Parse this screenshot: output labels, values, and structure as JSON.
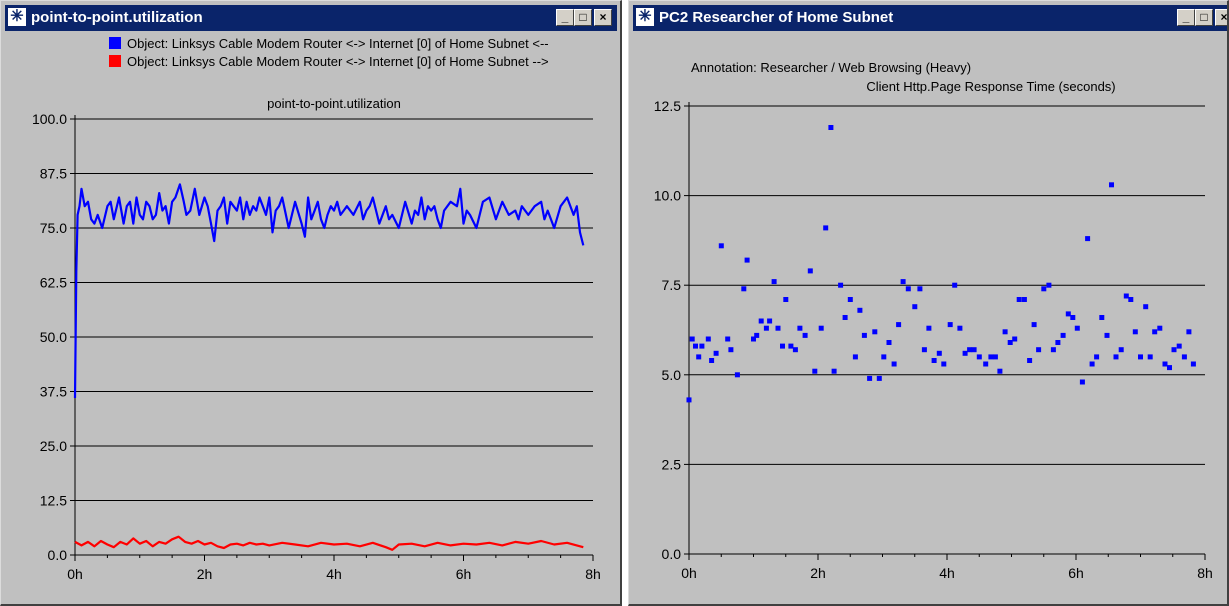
{
  "windows": {
    "left": {
      "title": "point-to-point.utilization",
      "controls": {
        "minimize_icon": "minimize-icon",
        "maximize_icon": "maximize-icon",
        "close_icon": "close-icon"
      }
    },
    "right": {
      "title": "PC2 Researcher of Home Subnet",
      "controls": {
        "minimize_icon": "minimize-icon",
        "maximize_icon": "maximize-icon",
        "close_icon": "close-icon"
      }
    }
  },
  "chart_data": [
    {
      "type": "line",
      "legend": [
        {
          "label": "Object: Linksys Cable Modem Router <-> Internet [0] of Home Subnet <--",
          "color": "#0000ff"
        },
        {
          "label": "Object: Linksys Cable Modem Router <-> Internet [0] of Home Subnet -->",
          "color": "#ff0000"
        }
      ],
      "title": "point-to-point.utilization",
      "xlabel": "",
      "ylabel": "",
      "ylim": [
        0,
        100
      ],
      "xlim": [
        0,
        8
      ],
      "yticks": [
        "0.0",
        "12.5",
        "25.0",
        "37.5",
        "50.0",
        "62.5",
        "75.0",
        "87.5",
        "100.0"
      ],
      "xticks": [
        "0h",
        "2h",
        "4h",
        "6h",
        "8h"
      ],
      "grid": true,
      "series": [
        {
          "name": "Object: Linksys Cable Modem Router <-> Internet [0] of Home Subnet <--",
          "color": "#0000ff",
          "x": [
            0,
            0.02,
            0.04,
            0.07,
            0.1,
            0.15,
            0.2,
            0.25,
            0.3,
            0.35,
            0.42,
            0.5,
            0.55,
            0.6,
            0.68,
            0.75,
            0.8,
            0.85,
            0.9,
            0.95,
            1.0,
            1.05,
            1.1,
            1.15,
            1.2,
            1.25,
            1.3,
            1.35,
            1.4,
            1.45,
            1.5,
            1.55,
            1.62,
            1.68,
            1.72,
            1.78,
            1.85,
            1.92,
            2.0,
            2.05,
            2.1,
            2.15,
            2.2,
            2.25,
            2.3,
            2.35,
            2.4,
            2.45,
            2.5,
            2.55,
            2.6,
            2.65,
            2.7,
            2.75,
            2.8,
            2.85,
            2.9,
            2.95,
            3.0,
            3.05,
            3.1,
            3.15,
            3.2,
            3.3,
            3.4,
            3.5,
            3.55,
            3.6,
            3.65,
            3.7,
            3.75,
            3.8,
            3.85,
            3.9,
            3.95,
            4.0,
            4.05,
            4.1,
            4.15,
            4.2,
            4.3,
            4.4,
            4.45,
            4.5,
            4.55,
            4.6,
            4.7,
            4.8,
            4.85,
            4.9,
            5.0,
            5.1,
            5.2,
            5.25,
            5.3,
            5.35,
            5.4,
            5.45,
            5.5,
            5.55,
            5.6,
            5.65,
            5.7,
            5.8,
            5.9,
            5.95,
            6.0,
            6.05,
            6.1,
            6.2,
            6.3,
            6.4,
            6.5,
            6.6,
            6.7,
            6.8,
            6.85,
            6.9,
            7.0,
            7.1,
            7.2,
            7.25,
            7.3,
            7.4,
            7.5,
            7.6,
            7.7,
            7.75,
            7.8,
            7.85
          ],
          "y": [
            36,
            65,
            78,
            80,
            84,
            80,
            81,
            77,
            76,
            78,
            75,
            80,
            81,
            77,
            82,
            76,
            80,
            81,
            76,
            82,
            78,
            77,
            81,
            80,
            77,
            78,
            83,
            79,
            80,
            76,
            81,
            82,
            85,
            81,
            78,
            79,
            84,
            78,
            82,
            80,
            76,
            72,
            79,
            80,
            82,
            76,
            81,
            80,
            79,
            82,
            77,
            81,
            78,
            80,
            79,
            82,
            80,
            78,
            82,
            74,
            79,
            80,
            82,
            75,
            81,
            76,
            73,
            82,
            77,
            79,
            81,
            77,
            75,
            78,
            80,
            79,
            81,
            78,
            79,
            80,
            78,
            81,
            77,
            79,
            80,
            82,
            76,
            80,
            77,
            78,
            75,
            81,
            76,
            79,
            78,
            82,
            77,
            80,
            79,
            80,
            77,
            75,
            79,
            81,
            80,
            84,
            76,
            79,
            78,
            75,
            81,
            82,
            77,
            81,
            78,
            79,
            77,
            80,
            78,
            80,
            81,
            77,
            79,
            75,
            80,
            82,
            78,
            80,
            74,
            71
          ],
          "y_note_unused": ""
        },
        {
          "name": "Object: Linksys Cable Modem Router <-> Internet [0] of Home Subnet -->",
          "color": "#ff0000",
          "x": [
            0,
            0.1,
            0.2,
            0.3,
            0.4,
            0.5,
            0.6,
            0.7,
            0.8,
            0.9,
            1.0,
            1.1,
            1.2,
            1.3,
            1.4,
            1.5,
            1.6,
            1.7,
            1.8,
            1.9,
            2.0,
            2.1,
            2.2,
            2.3,
            2.4,
            2.5,
            2.6,
            2.7,
            2.8,
            2.9,
            3.0,
            3.2,
            3.4,
            3.6,
            3.8,
            4.0,
            4.2,
            4.4,
            4.6,
            4.8,
            4.9,
            5.0,
            5.2,
            5.4,
            5.6,
            5.8,
            6.0,
            6.2,
            6.4,
            6.6,
            6.8,
            7.0,
            7.2,
            7.4,
            7.6,
            7.8,
            7.85
          ],
          "y": [
            3.0,
            2.2,
            3.0,
            2.0,
            3.2,
            2.4,
            1.8,
            3.0,
            2.4,
            3.8,
            2.6,
            3.2,
            2.0,
            3.0,
            2.6,
            3.6,
            4.2,
            3.0,
            2.6,
            3.2,
            2.4,
            2.8,
            2.0,
            1.6,
            2.4,
            2.6,
            2.2,
            2.8,
            2.4,
            2.6,
            2.2,
            2.8,
            2.4,
            2.0,
            2.8,
            2.4,
            2.6,
            2.0,
            2.8,
            1.8,
            1.2,
            2.4,
            2.6,
            2.0,
            2.8,
            2.2,
            2.6,
            2.4,
            2.8,
            2.2,
            3.0,
            2.6,
            3.2,
            2.4,
            2.8,
            2.0,
            1.8
          ]
        }
      ]
    },
    {
      "type": "scatter",
      "title": "Client Http.Page Response Time (seconds)",
      "annotation": "Annotation: Researcher / Web Browsing (Heavy)",
      "xlabel": "",
      "ylabel": "",
      "ylim": [
        0,
        12.5
      ],
      "xlim": [
        0,
        8
      ],
      "yticks": [
        "0.0",
        "2.5",
        "5.0",
        "7.5",
        "10.0",
        "12.5"
      ],
      "xticks": [
        "0h",
        "2h",
        "4h",
        "6h",
        "8h"
      ],
      "grid": true,
      "series": [
        {
          "color": "#0000ff",
          "x": [
            0.0,
            0.05,
            0.1,
            0.15,
            0.2,
            0.3,
            0.35,
            0.42,
            0.5,
            0.6,
            0.65,
            0.75,
            0.85,
            0.9,
            1.0,
            1.05,
            1.12,
            1.2,
            1.25,
            1.32,
            1.38,
            1.45,
            1.5,
            1.58,
            1.65,
            1.72,
            1.8,
            1.88,
            1.95,
            2.05,
            2.12,
            2.2,
            2.25,
            2.35,
            2.42,
            2.5,
            2.58,
            2.65,
            2.72,
            2.8,
            2.88,
            2.95,
            3.02,
            3.1,
            3.18,
            3.25,
            3.32,
            3.4,
            3.5,
            3.58,
            3.65,
            3.72,
            3.8,
            3.88,
            3.95,
            4.05,
            4.12,
            4.2,
            4.28,
            4.35,
            4.42,
            4.5,
            4.6,
            4.68,
            4.75,
            4.82,
            4.9,
            4.98,
            5.05,
            5.12,
            5.2,
            5.28,
            5.35,
            5.42,
            5.5,
            5.58,
            5.65,
            5.72,
            5.8,
            5.88,
            5.95,
            6.02,
            6.1,
            6.18,
            6.25,
            6.32,
            6.4,
            6.48,
            6.55,
            6.62,
            6.7,
            6.78,
            6.85,
            6.92,
            7.0,
            7.08,
            7.15,
            7.22,
            7.3,
            7.38,
            7.45,
            7.52,
            7.6,
            7.68,
            7.75,
            7.82
          ],
          "y": [
            4.3,
            6.0,
            5.8,
            5.5,
            5.8,
            6.0,
            5.4,
            5.6,
            8.6,
            6.0,
            5.7,
            5.0,
            7.4,
            8.2,
            6.0,
            6.1,
            6.5,
            6.3,
            6.5,
            7.6,
            6.3,
            5.8,
            7.1,
            5.8,
            5.7,
            6.3,
            6.1,
            7.9,
            5.1,
            6.3,
            9.1,
            11.9,
            5.1,
            7.5,
            6.6,
            7.1,
            5.5,
            6.8,
            6.1,
            4.9,
            6.2,
            4.9,
            5.5,
            5.9,
            5.3,
            6.4,
            7.6,
            7.4,
            6.9,
            7.4,
            5.7,
            6.3,
            5.4,
            5.6,
            5.3,
            6.4,
            7.5,
            6.3,
            5.6,
            5.7,
            5.7,
            5.5,
            5.3,
            5.5,
            5.5,
            5.1,
            6.2,
            5.9,
            6.0,
            7.1,
            7.1,
            5.4,
            6.4,
            5.7,
            7.4,
            7.5,
            5.7,
            5.9,
            6.1,
            6.7,
            6.6,
            6.3,
            4.8,
            8.8,
            5.3,
            5.5,
            6.6,
            6.1,
            10.3,
            5.5,
            5.7,
            7.2,
            7.1,
            6.2,
            5.5,
            6.9,
            5.5,
            6.2,
            6.3,
            5.3,
            5.2,
            5.7,
            5.8,
            5.5,
            6.2,
            5.3
          ]
        }
      ]
    }
  ]
}
